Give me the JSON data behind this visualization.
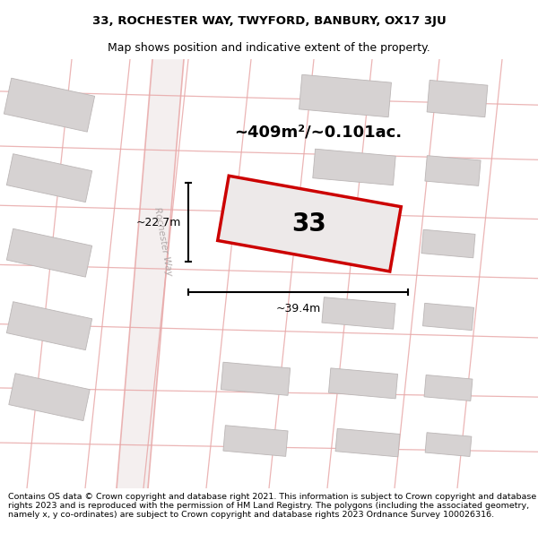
{
  "title_line1": "33, ROCHESTER WAY, TWYFORD, BANBURY, OX17 3JU",
  "title_line2": "Map shows position and indicative extent of the property.",
  "footer_text": "Contains OS data © Crown copyright and database right 2021. This information is subject to Crown copyright and database rights 2023 and is reproduced with the permission of HM Land Registry. The polygons (including the associated geometry, namely x, y co-ordinates) are subject to Crown copyright and database rights 2023 Ordnance Survey 100026316.",
  "area_text": "~409m²/~0.101ac.",
  "label_33": "33",
  "dim_height": "~22.7m",
  "dim_width": "~39.4m",
  "street_name": "Rochester Way",
  "map_bg": "#f2f0f0",
  "building_fill": "#d6d2d2",
  "building_edge": "#bbb6b6",
  "highlight_fill": "#ede9e9",
  "highlight_edge": "#cc0000",
  "road_line_color": "#e8a8a8",
  "title_fontsize": 9.5,
  "footer_fontsize": 6.8,
  "area_fontsize": 13,
  "label_fontsize": 20,
  "dim_fontsize": 9,
  "street_fontsize": 7.5
}
